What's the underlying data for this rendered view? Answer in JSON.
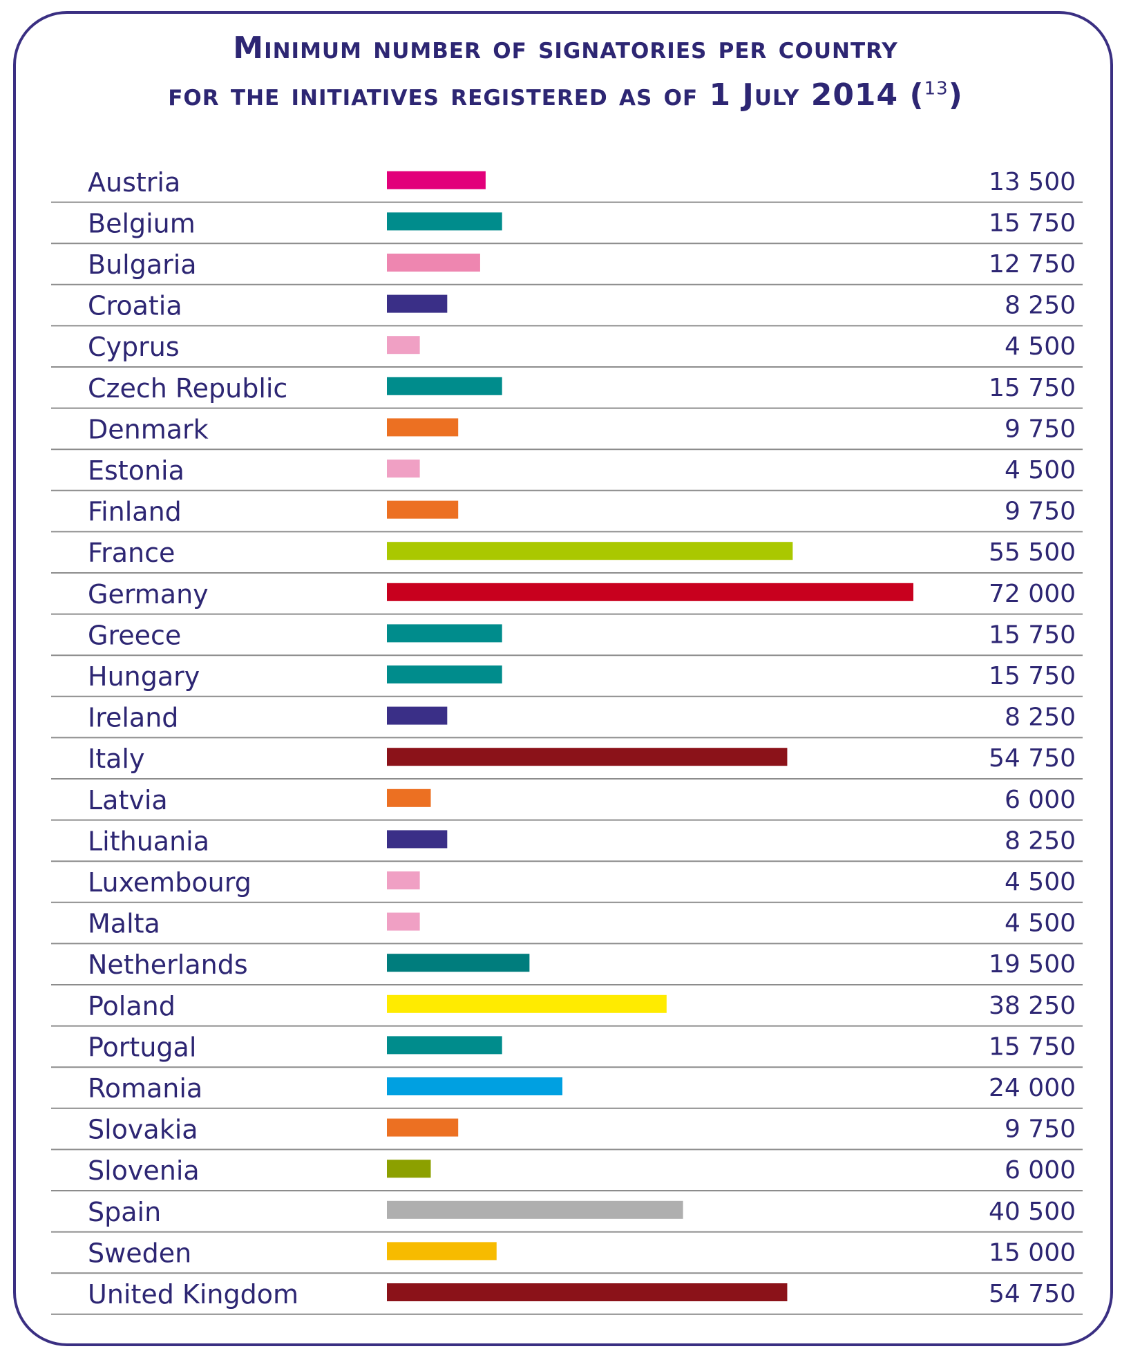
{
  "title": {
    "line1": "Minimum number of signatories per country",
    "line2": "for the initiatives registered as of 1 July 2014 (",
    "footnote": "13",
    "close": ")"
  },
  "chart_data": {
    "type": "bar",
    "orientation": "horizontal",
    "title": "Minimum number of signatories per country for the initiatives registered as of 1 July 2014 (13)",
    "xlabel": "",
    "ylabel": "",
    "xlim": [
      0,
      72000
    ],
    "grid": false,
    "legend": "none",
    "categories": [
      "Austria",
      "Belgium",
      "Bulgaria",
      "Croatia",
      "Cyprus",
      "Czech Republic",
      "Denmark",
      "Estonia",
      "Finland",
      "France",
      "Germany",
      "Greece",
      "Hungary",
      "Ireland",
      "Italy",
      "Latvia",
      "Lithuania",
      "Luxembourg",
      "Malta",
      "Netherlands",
      "Poland",
      "Portugal",
      "Romania",
      "Slovakia",
      "Slovenia",
      "Spain",
      "Sweden",
      "United Kingdom"
    ],
    "values": [
      13500,
      15750,
      12750,
      8250,
      4500,
      15750,
      9750,
      4500,
      9750,
      55500,
      72000,
      15750,
      15750,
      8250,
      54750,
      6000,
      8250,
      4500,
      4500,
      19500,
      38250,
      15750,
      24000,
      9750,
      6000,
      40500,
      15000,
      54750
    ],
    "value_labels": [
      "13 500",
      "15 750",
      "12 750",
      "8 250",
      "4 500",
      "15 750",
      "9 750",
      "4 500",
      "9 750",
      "55 500",
      "72 000",
      "15 750",
      "15 750",
      "8 250",
      "54 750",
      "6 000",
      "8 250",
      "4 500",
      "4 500",
      "19 500",
      "38 250",
      "15 750",
      "24 000",
      "9 750",
      "6 000",
      "40 500",
      "15 000",
      "54 750"
    ],
    "colors": [
      "#e2007a",
      "#008c8c",
      "#ee86b0",
      "#3a2f87",
      "#f0a0c4",
      "#008c8c",
      "#ec7022",
      "#f0a0c4",
      "#ec7022",
      "#aac800",
      "#c8001e",
      "#008c8c",
      "#008c8c",
      "#3a2f87",
      "#8b1219",
      "#ec7022",
      "#3a2f87",
      "#f0a0c4",
      "#f0a0c4",
      "#007d7d",
      "#ffeb00",
      "#008c8c",
      "#00a0e1",
      "#ec7022",
      "#8ca000",
      "#afafaf",
      "#f7bb00",
      "#8b1219"
    ]
  }
}
